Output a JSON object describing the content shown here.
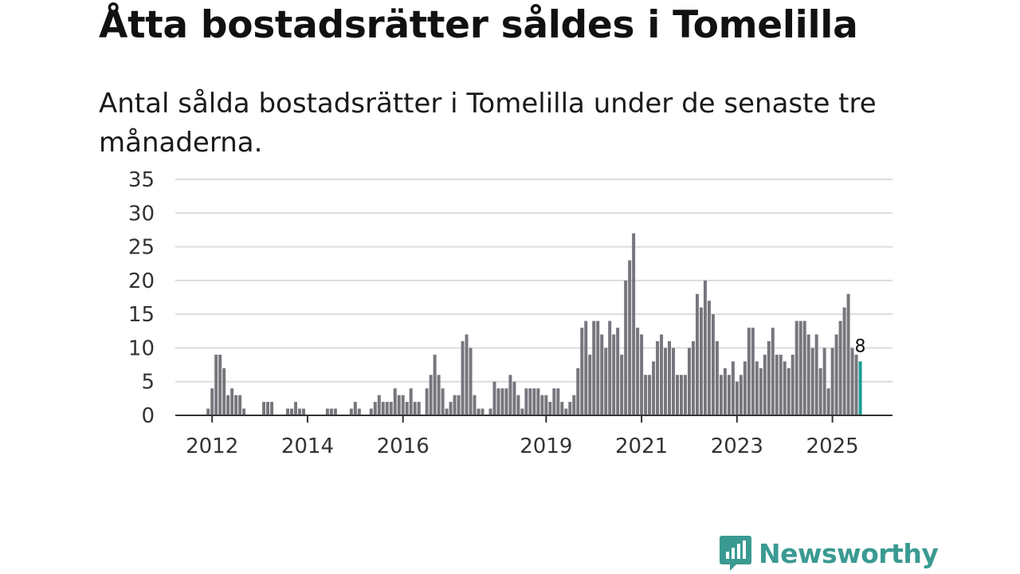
{
  "header": {
    "title": "Åtta bostadsrätter såldes i Tomelilla",
    "subtitle": "Antal sålda bostadsrätter i Tomelilla under de senaste tre månaderna."
  },
  "branding": {
    "name": "Newsworthy",
    "color": "#3a9a92"
  },
  "chart_data": {
    "type": "bar",
    "title": "Åtta bostadsrätter såldes i Tomelilla",
    "subtitle": "Antal sålda bostadsrätter i Tomelilla under de senaste tre månaderna.",
    "xlabel": "",
    "ylabel": "",
    "ylim": [
      0,
      35
    ],
    "yticks": [
      0,
      5,
      10,
      15,
      20,
      25,
      30,
      35
    ],
    "grid": true,
    "start": "2012-01",
    "xticks": [
      {
        "label": "2012",
        "index": 1
      },
      {
        "label": "2014",
        "index": 25
      },
      {
        "label": "2016",
        "index": 49
      },
      {
        "label": "2019",
        "index": 85
      },
      {
        "label": "2021",
        "index": 109
      },
      {
        "label": "2023",
        "index": 133
      },
      {
        "label": "2025",
        "index": 157
      }
    ],
    "colors": {
      "bar": "#77767d",
      "highlight": "#1a9c95"
    },
    "highlight_index": 164,
    "highlight_label": "8",
    "values": [
      1,
      4,
      9,
      9,
      7,
      3,
      4,
      3,
      3,
      1,
      0,
      0,
      0,
      0,
      2,
      2,
      2,
      0,
      0,
      0,
      1,
      1,
      2,
      1,
      1,
      0,
      0,
      0,
      0,
      0,
      1,
      1,
      1,
      0,
      0,
      0,
      1,
      2,
      1,
      0,
      0,
      1,
      2,
      3,
      2,
      2,
      2,
      4,
      3,
      3,
      2,
      4,
      2,
      2,
      0,
      4,
      6,
      9,
      6,
      4,
      1,
      2,
      3,
      3,
      11,
      12,
      10,
      3,
      1,
      1,
      0,
      1,
      5,
      4,
      4,
      4,
      6,
      5,
      3,
      1,
      4,
      4,
      4,
      4,
      3,
      3,
      2,
      4,
      4,
      2,
      1,
      2,
      3,
      7,
      13,
      14,
      9,
      14,
      14,
      12,
      10,
      14,
      12,
      13,
      9,
      20,
      23,
      27,
      13,
      12,
      6,
      6,
      8,
      11,
      12,
      10,
      11,
      10,
      6,
      6,
      6,
      10,
      11,
      18,
      16,
      20,
      17,
      15,
      11,
      6,
      7,
      6,
      8,
      5,
      6,
      8,
      13,
      13,
      8,
      7,
      9,
      11,
      13,
      9,
      9,
      8,
      7,
      9,
      14,
      14,
      14,
      12,
      10,
      12,
      7,
      10,
      4,
      10,
      12,
      14,
      16,
      18,
      10,
      9,
      8
    ]
  }
}
